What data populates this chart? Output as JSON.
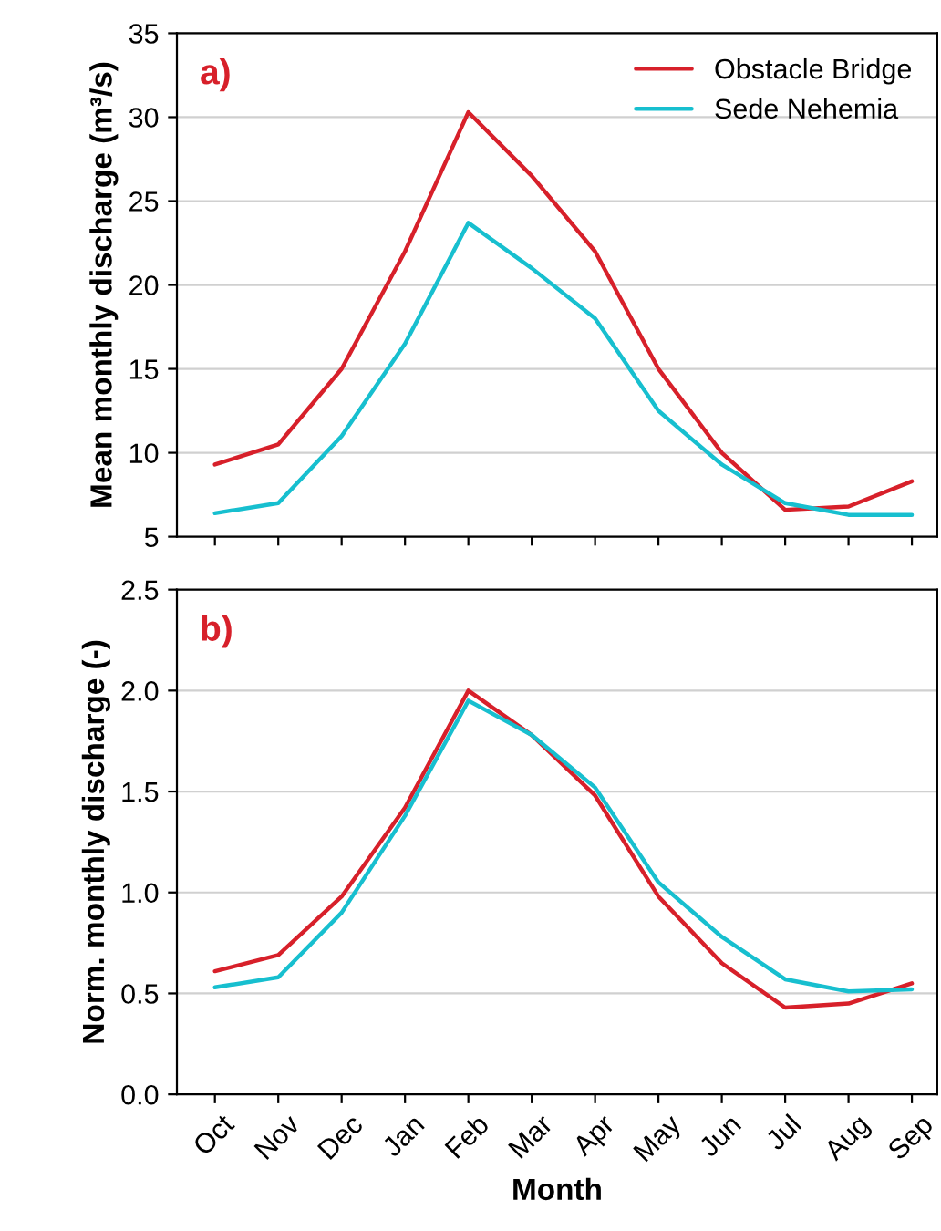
{
  "chart_data": [
    {
      "type": "line",
      "ylabel": "Mean monthly discharge (m³/s)",
      "annotations": [
        "a)"
      ],
      "categories": [
        null,
        null,
        null,
        null,
        null,
        null,
        null,
        null,
        null,
        null,
        null,
        null
      ],
      "series": [
        {
          "name": "Obstacle Bridge",
          "color": "#d7202a",
          "values": [
            9.3,
            10.5,
            15,
            22,
            30.3,
            26.5,
            22,
            15,
            10,
            6.6,
            6.8,
            8.3
          ]
        },
        {
          "name": "Sede Nehemia",
          "color": "#17bfcf",
          "values": [
            6.4,
            7,
            11,
            16.5,
            23.7,
            21,
            18,
            12.5,
            9.3,
            7,
            6.3,
            6.3
          ]
        }
      ],
      "ylim": [
        5,
        35
      ],
      "yticks": [
        5,
        10,
        15,
        20,
        25,
        30,
        35
      ],
      "grid": "y",
      "legend": "top right",
      "tick_labels": "y",
      "marker": "none",
      "line_style": "solid"
    },
    {
      "type": "line",
      "xlabel": "Month",
      "ylabel": "Norm. monthly discharge (-)",
      "annotations": [
        "b)"
      ],
      "categories": [
        "Oct",
        "Nov",
        "Dec",
        "Jan",
        "Feb",
        "Mar",
        "Apr",
        "May",
        "Jun",
        "Jul",
        "Aug",
        "Sep"
      ],
      "series": [
        {
          "color": "#d7202a",
          "values": [
            0.61,
            0.69,
            0.98,
            1.42,
            2.0,
            1.78,
            1.48,
            0.98,
            0.65,
            0.43,
            0.45,
            0.55
          ]
        },
        {
          "color": "#17bfcf",
          "values": [
            0.53,
            0.58,
            0.9,
            1.38,
            1.95,
            1.78,
            1.52,
            1.05,
            0.78,
            0.57,
            0.51,
            0.52
          ]
        }
      ],
      "ylim": [
        0,
        2.5
      ],
      "yticks": [
        {
          "value": 0,
          "label": "0.0"
        },
        {
          "value": 0.5,
          "label": "0.5"
        },
        {
          "value": 1,
          "label": "1.0"
        },
        {
          "value": 1.5,
          "label": "1.5"
        },
        {
          "value": 2,
          "label": "2.0"
        },
        {
          "value": 2.5,
          "label": "2.5"
        }
      ],
      "grid": "y",
      "legend": false,
      "marker": "none",
      "line_style": "solid"
    }
  ]
}
